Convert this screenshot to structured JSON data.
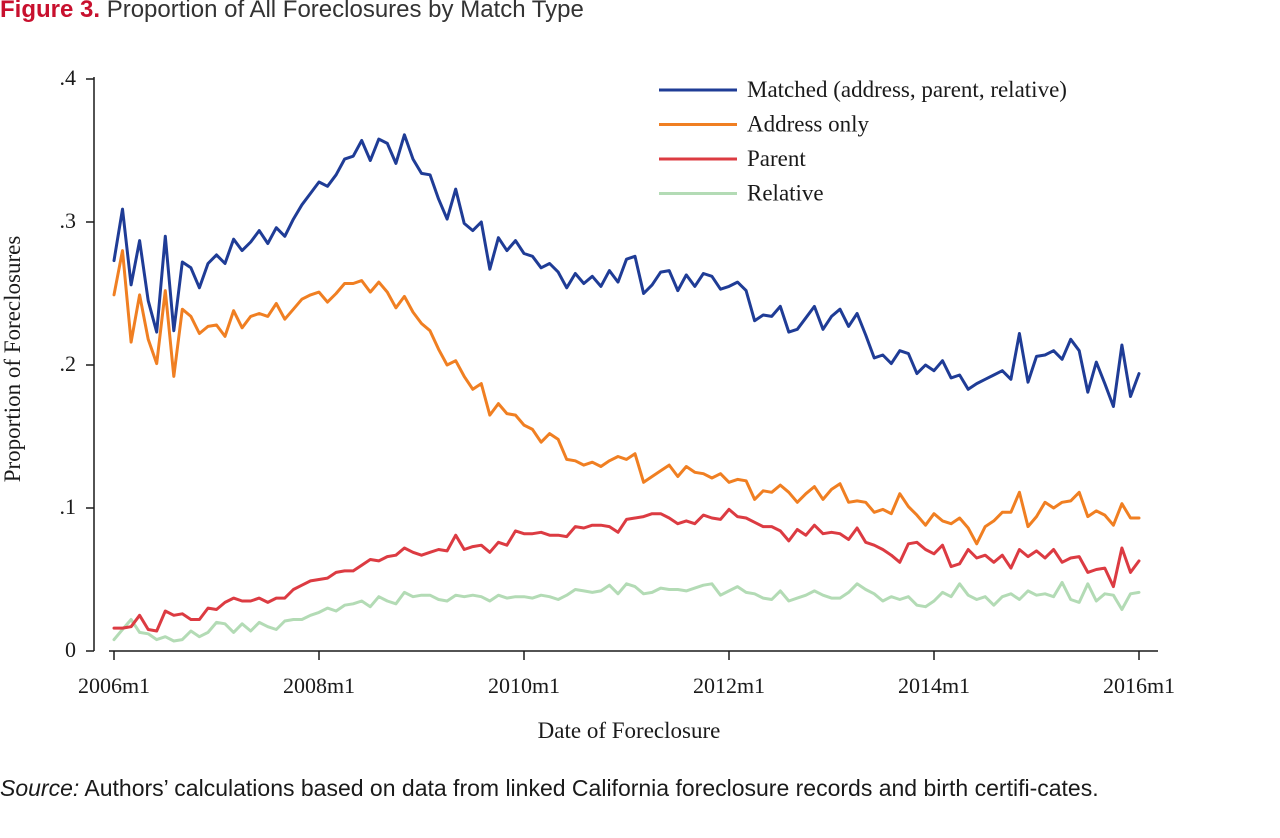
{
  "figure": {
    "label": "Figure 3.",
    "title": "Proportion of All Foreclosures by Match Type"
  },
  "source": {
    "label": "Source:",
    "text": "Authors’ calculations based on data from linked California foreclosure records and birth certifi-cates."
  },
  "colors": {
    "matched": "#1f3c96",
    "address": "#f07f22",
    "parent": "#dc3b42",
    "relative": "#b3dbb5",
    "axis": "#1a1a1a",
    "title_label": "#c8102e"
  },
  "chart_data": {
    "type": "line",
    "title": "",
    "xlabel": "Date of Foreclosure",
    "ylabel": "Proportion of Foreclosures",
    "x_start": "2006m1",
    "x_end": "2015m12",
    "x_ticks": [
      "2006m1",
      "2008m1",
      "2010m1",
      "2012m1",
      "2014m1",
      "2016m1"
    ],
    "y_ticks": [
      0,
      0.1,
      0.2,
      0.3,
      0.4
    ],
    "y_tick_labels": [
      "0",
      ".1",
      ".2",
      ".3",
      ".4"
    ],
    "ylim": [
      0,
      0.4
    ],
    "grid": false,
    "legend_position": "top-right",
    "series": [
      {
        "name": "Matched (address, parent, relative)",
        "color": "#1f3c96",
        "values": [
          0.273,
          0.309,
          0.256,
          0.287,
          0.245,
          0.223,
          0.29,
          0.224,
          0.272,
          0.268,
          0.254,
          0.271,
          0.277,
          0.271,
          0.288,
          0.28,
          0.286,
          0.294,
          0.285,
          0.296,
          0.29,
          0.302,
          0.312,
          0.32,
          0.328,
          0.325,
          0.333,
          0.344,
          0.346,
          0.357,
          0.343,
          0.358,
          0.355,
          0.341,
          0.361,
          0.344,
          0.334,
          0.333,
          0.316,
          0.302,
          0.323,
          0.299,
          0.294,
          0.3,
          0.267,
          0.289,
          0.28,
          0.287,
          0.278,
          0.276,
          0.268,
          0.271,
          0.265,
          0.254,
          0.264,
          0.257,
          0.262,
          0.255,
          0.266,
          0.258,
          0.274,
          0.276,
          0.25,
          0.256,
          0.265,
          0.266,
          0.252,
          0.263,
          0.255,
          0.264,
          0.262,
          0.253,
          0.255,
          0.258,
          0.252,
          0.231,
          0.235,
          0.234,
          0.241,
          0.223,
          0.225,
          0.233,
          0.241,
          0.225,
          0.234,
          0.239,
          0.227,
          0.236,
          0.221,
          0.205,
          0.207,
          0.201,
          0.21,
          0.208,
          0.194,
          0.2,
          0.196,
          0.203,
          0.191,
          0.193,
          0.183,
          0.187,
          0.19,
          0.193,
          0.196,
          0.19,
          0.222,
          0.188,
          0.206,
          0.207,
          0.21,
          0.204,
          0.218,
          0.21,
          0.181,
          0.202,
          0.187,
          0.171,
          0.214,
          0.178,
          0.194
        ]
      },
      {
        "name": "Address only",
        "color": "#f07f22",
        "values": [
          0.249,
          0.28,
          0.216,
          0.249,
          0.218,
          0.201,
          0.252,
          0.192,
          0.239,
          0.234,
          0.222,
          0.227,
          0.228,
          0.22,
          0.238,
          0.226,
          0.234,
          0.236,
          0.234,
          0.243,
          0.232,
          0.239,
          0.246,
          0.249,
          0.251,
          0.244,
          0.25,
          0.257,
          0.257,
          0.259,
          0.251,
          0.258,
          0.251,
          0.24,
          0.248,
          0.237,
          0.229,
          0.224,
          0.211,
          0.2,
          0.203,
          0.192,
          0.183,
          0.187,
          0.165,
          0.173,
          0.166,
          0.165,
          0.158,
          0.155,
          0.146,
          0.152,
          0.148,
          0.134,
          0.133,
          0.13,
          0.132,
          0.129,
          0.133,
          0.136,
          0.134,
          0.138,
          0.118,
          0.122,
          0.126,
          0.13,
          0.122,
          0.129,
          0.125,
          0.124,
          0.121,
          0.124,
          0.118,
          0.12,
          0.119,
          0.106,
          0.112,
          0.111,
          0.116,
          0.111,
          0.104,
          0.11,
          0.115,
          0.106,
          0.113,
          0.117,
          0.104,
          0.105,
          0.104,
          0.097,
          0.099,
          0.096,
          0.11,
          0.101,
          0.095,
          0.088,
          0.096,
          0.091,
          0.089,
          0.093,
          0.086,
          0.075,
          0.087,
          0.091,
          0.097,
          0.097,
          0.111,
          0.087,
          0.094,
          0.104,
          0.1,
          0.104,
          0.105,
          0.111,
          0.094,
          0.098,
          0.095,
          0.088,
          0.103,
          0.093,
          0.093
        ]
      },
      {
        "name": "Parent",
        "color": "#dc3b42",
        "values": [
          0.016,
          0.016,
          0.017,
          0.025,
          0.015,
          0.014,
          0.028,
          0.025,
          0.026,
          0.022,
          0.022,
          0.03,
          0.029,
          0.034,
          0.037,
          0.035,
          0.035,
          0.037,
          0.034,
          0.037,
          0.037,
          0.043,
          0.046,
          0.049,
          0.05,
          0.051,
          0.055,
          0.056,
          0.056,
          0.06,
          0.064,
          0.063,
          0.066,
          0.067,
          0.072,
          0.069,
          0.067,
          0.069,
          0.071,
          0.07,
          0.081,
          0.071,
          0.073,
          0.074,
          0.069,
          0.076,
          0.074,
          0.084,
          0.082,
          0.082,
          0.083,
          0.081,
          0.081,
          0.08,
          0.087,
          0.086,
          0.088,
          0.088,
          0.087,
          0.083,
          0.092,
          0.093,
          0.094,
          0.096,
          0.096,
          0.093,
          0.089,
          0.091,
          0.089,
          0.095,
          0.093,
          0.092,
          0.099,
          0.094,
          0.093,
          0.09,
          0.087,
          0.087,
          0.084,
          0.077,
          0.085,
          0.081,
          0.088,
          0.082,
          0.083,
          0.082,
          0.078,
          0.086,
          0.076,
          0.074,
          0.071,
          0.067,
          0.062,
          0.075,
          0.076,
          0.071,
          0.068,
          0.074,
          0.059,
          0.061,
          0.071,
          0.065,
          0.067,
          0.062,
          0.067,
          0.058,
          0.071,
          0.066,
          0.07,
          0.065,
          0.071,
          0.062,
          0.065,
          0.066,
          0.055,
          0.057,
          0.058,
          0.045,
          0.072,
          0.055,
          0.063
        ]
      },
      {
        "name": "Relative",
        "color": "#b3dbb5",
        "values": [
          0.008,
          0.015,
          0.022,
          0.013,
          0.012,
          0.008,
          0.01,
          0.007,
          0.008,
          0.014,
          0.01,
          0.013,
          0.02,
          0.019,
          0.013,
          0.019,
          0.014,
          0.02,
          0.017,
          0.015,
          0.021,
          0.022,
          0.022,
          0.025,
          0.027,
          0.03,
          0.028,
          0.032,
          0.033,
          0.035,
          0.031,
          0.038,
          0.035,
          0.033,
          0.041,
          0.038,
          0.039,
          0.039,
          0.036,
          0.035,
          0.039,
          0.038,
          0.039,
          0.038,
          0.035,
          0.039,
          0.037,
          0.038,
          0.038,
          0.037,
          0.039,
          0.038,
          0.036,
          0.039,
          0.043,
          0.042,
          0.041,
          0.042,
          0.046,
          0.04,
          0.047,
          0.045,
          0.04,
          0.041,
          0.044,
          0.043,
          0.043,
          0.042,
          0.044,
          0.046,
          0.047,
          0.039,
          0.042,
          0.045,
          0.041,
          0.04,
          0.037,
          0.036,
          0.042,
          0.035,
          0.037,
          0.039,
          0.042,
          0.039,
          0.037,
          0.037,
          0.041,
          0.047,
          0.043,
          0.04,
          0.035,
          0.038,
          0.036,
          0.038,
          0.032,
          0.031,
          0.035,
          0.041,
          0.038,
          0.047,
          0.039,
          0.036,
          0.038,
          0.032,
          0.038,
          0.04,
          0.036,
          0.042,
          0.039,
          0.04,
          0.038,
          0.048,
          0.036,
          0.034,
          0.047,
          0.035,
          0.04,
          0.039,
          0.029,
          0.04,
          0.041
        ]
      }
    ]
  }
}
